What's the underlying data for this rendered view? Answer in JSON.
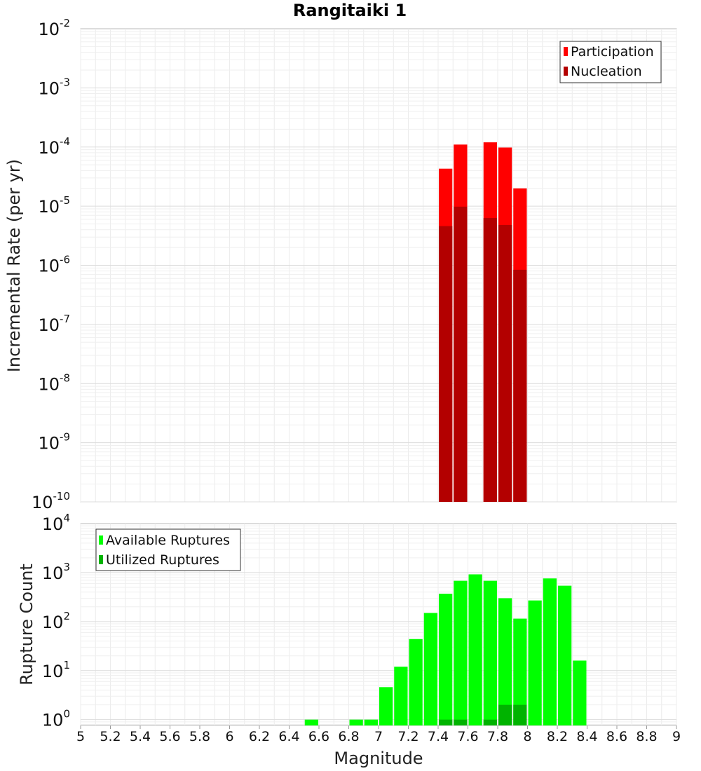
{
  "chart_data": [
    {
      "type": "bar",
      "title": "Rangitaiki 1",
      "ylabel": "Incremental Rate (per yr)",
      "yscale": "log",
      "ylim": [
        1e-10,
        0.01
      ],
      "ytick_exponents": [
        -10,
        -9,
        -8,
        -7,
        -6,
        -5,
        -4,
        -3,
        -2
      ],
      "xlim": [
        5,
        9
      ],
      "bin_width": 0.1,
      "legend": {
        "position": "top-right",
        "entries": [
          "Participation",
          "Nucleation"
        ]
      },
      "series": [
        {
          "name": "Participation",
          "color": "#ff0000",
          "x": [
            7.45,
            7.55,
            7.75,
            7.85,
            7.95
          ],
          "values": [
            4.3e-05,
            0.00011,
            0.00012,
            9.8e-05,
            2e-05
          ]
        },
        {
          "name": "Nucleation",
          "color": "#b30000",
          "x": [
            7.45,
            7.55,
            7.75,
            7.85,
            7.95
          ],
          "values": [
            4.6e-06,
            9.8e-06,
            6.3e-06,
            4.8e-06,
            8.4e-07
          ]
        }
      ]
    },
    {
      "type": "bar",
      "xlabel": "Magnitude",
      "ylabel": "Rupture Count",
      "yscale": "log",
      "ylim": [
        0.76,
        10000
      ],
      "ytick_exponents": [
        0,
        1,
        2,
        3,
        4
      ],
      "xlim": [
        5,
        9
      ],
      "xticks": [
        "5",
        "5.2",
        "5.4",
        "5.6",
        "5.8",
        "6",
        "6.2",
        "6.4",
        "6.6",
        "6.8",
        "7",
        "7.2",
        "7.4",
        "7.6",
        "7.8",
        "8",
        "8.2",
        "8.4",
        "8.6",
        "8.8",
        "9"
      ],
      "bin_width": 0.1,
      "legend": {
        "position": "top-left",
        "entries": [
          "Available Ruptures",
          "Utilized Ruptures"
        ]
      },
      "series": [
        {
          "name": "Available Ruptures",
          "color": "#00ff00",
          "x": [
            6.55,
            6.85,
            6.95,
            7.05,
            7.15,
            7.25,
            7.35,
            7.45,
            7.55,
            7.65,
            7.75,
            7.85,
            7.95,
            8.05,
            8.15,
            8.25,
            8.35
          ],
          "values": [
            1,
            1,
            1,
            4.6,
            12,
            44,
            150,
            370,
            680,
            920,
            680,
            300,
            115,
            270,
            760,
            540,
            16
          ]
        },
        {
          "name": "Utilized Ruptures",
          "color": "#00b300",
          "x": [
            7.45,
            7.55,
            7.75,
            7.85,
            7.95
          ],
          "values": [
            1,
            1,
            1,
            2,
            2
          ]
        }
      ]
    }
  ]
}
